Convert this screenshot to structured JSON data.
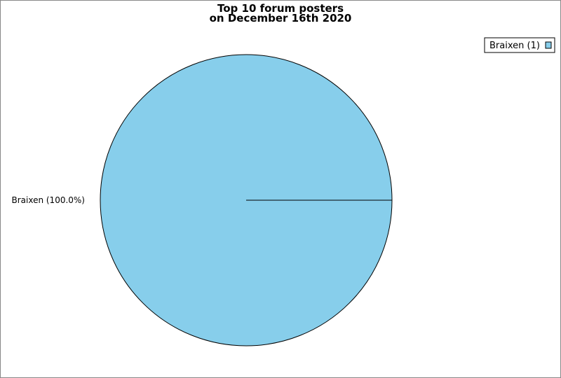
{
  "chart_data": {
    "type": "pie",
    "title": "Top 10 forum posters",
    "subtitle": "on December 16th 2020",
    "categories": [
      "Braixen"
    ],
    "values": [
      1
    ],
    "slice_labels": [
      "Braixen (100.0%)"
    ],
    "legend": {
      "entries": [
        "Braixen (1)"
      ],
      "placement": "top-right"
    },
    "colors": [
      "#87ceeb"
    ]
  }
}
